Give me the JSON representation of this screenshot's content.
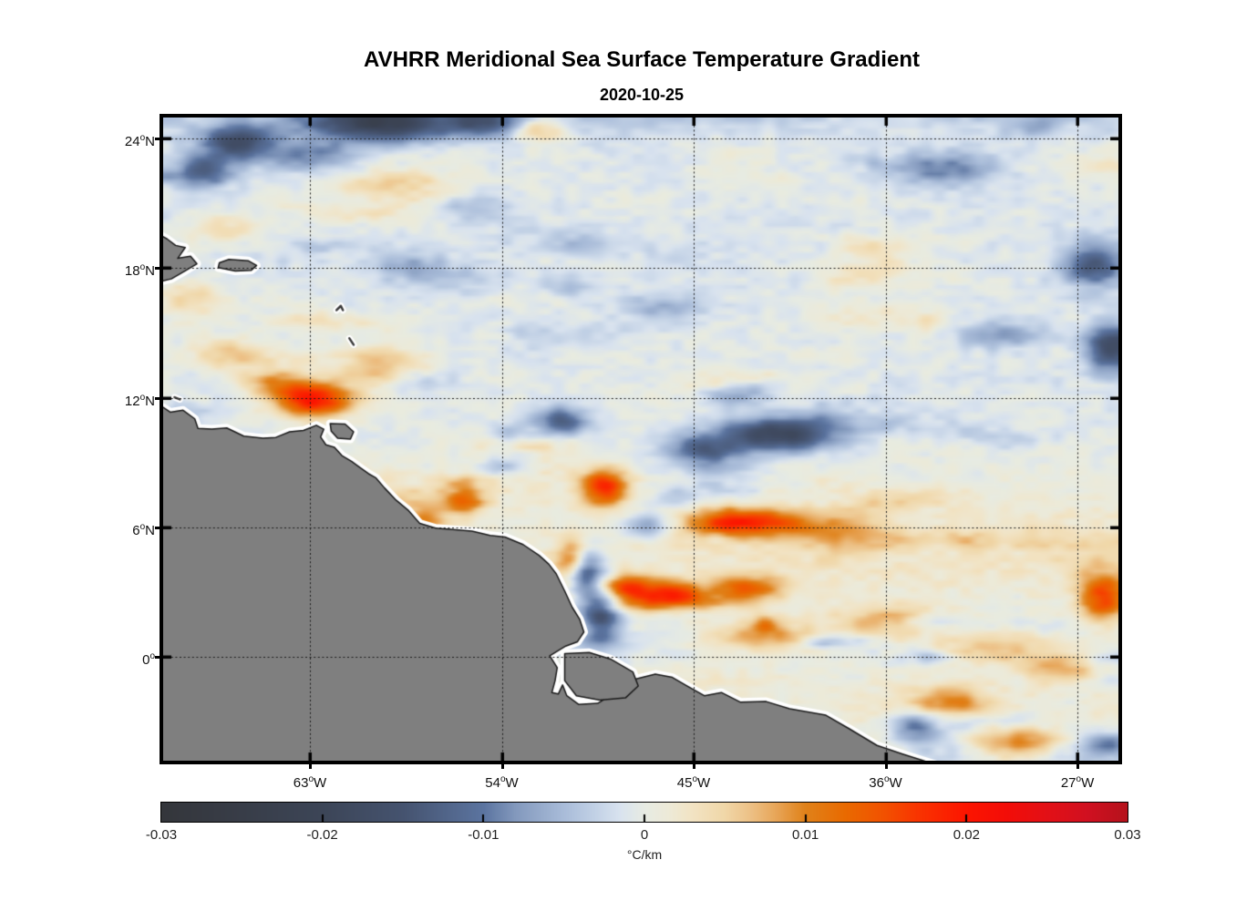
{
  "title": "AVHRR Meridional Sea Surface Temperature Gradient",
  "subtitle": "2020-10-25",
  "chart_data": {
    "type": "heatmap",
    "title": "AVHRR Meridional Sea Surface Temperature Gradient",
    "subtitle": "2020-10-25",
    "x_axis": {
      "unit": "degrees west longitude",
      "ticks": [
        {
          "deg": 63,
          "label": "63",
          "hemi": "W"
        },
        {
          "deg": 54,
          "label": "54",
          "hemi": "W"
        },
        {
          "deg": 45,
          "label": "45",
          "hemi": "W"
        },
        {
          "deg": 36,
          "label": "36",
          "hemi": "W"
        },
        {
          "deg": 27,
          "label": "27",
          "hemi": "W"
        }
      ],
      "lim": [
        -70,
        -25
      ]
    },
    "y_axis": {
      "unit": "degrees north latitude",
      "ticks": [
        {
          "deg": 24,
          "label": "24",
          "hemi": "N"
        },
        {
          "deg": 18,
          "label": "18",
          "hemi": "N"
        },
        {
          "deg": 12,
          "label": "12",
          "hemi": "N"
        },
        {
          "deg": 6,
          "label": "6",
          "hemi": "N"
        },
        {
          "deg": 0,
          "label": "0",
          "hemi": ""
        }
      ],
      "lim": [
        -5,
        25
      ]
    },
    "grid": "dotted",
    "land_color": "#7f7f7f",
    "coast_halo_color": "#ffffff",
    "coast_line_color": "#1a1a1a",
    "colorbar": {
      "min": -0.03,
      "max": 0.03,
      "unit": "°C/km",
      "tick_labels": [
        {
          "t": "-0.03",
          "v": -0.03
        },
        {
          "t": "-0.02",
          "v": -0.02
        },
        {
          "t": "-0.01",
          "v": -0.01
        },
        {
          "t": "0",
          "v": 0
        },
        {
          "t": "0.01",
          "v": 0.01
        },
        {
          "t": "0.02",
          "v": 0.02
        },
        {
          "t": "0.03",
          "v": 0.03
        }
      ],
      "stops": [
        {
          "v": -0.03,
          "c": "#34363b"
        },
        {
          "v": -0.025,
          "c": "#383d48"
        },
        {
          "v": -0.02,
          "c": "#3c4557"
        },
        {
          "v": -0.015,
          "c": "#45536f"
        },
        {
          "v": -0.01,
          "c": "#5b74a0"
        },
        {
          "v": -0.008,
          "c": "#8399bd"
        },
        {
          "v": -0.005,
          "c": "#a9bcd9"
        },
        {
          "v": -0.003,
          "c": "#c3d2e6"
        },
        {
          "v": -0.0015,
          "c": "#d9e3ef"
        },
        {
          "v": 0,
          "c": "#e7ebe3"
        },
        {
          "v": 0.0015,
          "c": "#edead8"
        },
        {
          "v": 0.003,
          "c": "#f2e3c3"
        },
        {
          "v": 0.005,
          "c": "#f0d7a8"
        },
        {
          "v": 0.0065,
          "c": "#edc288"
        },
        {
          "v": 0.008,
          "c": "#e8a95e"
        },
        {
          "v": 0.01,
          "c": "#e0821a"
        },
        {
          "v": 0.0125,
          "c": "#e96a00"
        },
        {
          "v": 0.015,
          "c": "#f25000"
        },
        {
          "v": 0.017,
          "c": "#f93400"
        },
        {
          "v": 0.02,
          "c": "#fc1500"
        },
        {
          "v": 0.0225,
          "c": "#f30d08"
        },
        {
          "v": 0.025,
          "c": "#e31016"
        },
        {
          "v": 0.0275,
          "c": "#d11020"
        },
        {
          "v": 0.03,
          "c": "#b5121c"
        }
      ]
    },
    "anomalies": [
      {
        "lon": -59.6,
        "lat": 24.7,
        "amp": -0.018,
        "sx": 2.3,
        "sy": 0.6
      },
      {
        "lon": -66.4,
        "lat": 23.8,
        "amp": -0.015,
        "sx": 1.2,
        "sy": 0.55
      },
      {
        "lon": -67.9,
        "lat": 22.4,
        "amp": -0.01,
        "sx": 0.9,
        "sy": 0.5
      },
      {
        "lon": -63.0,
        "lat": 23.2,
        "amp": -0.008,
        "sx": 1.5,
        "sy": 0.5
      },
      {
        "lon": -55.0,
        "lat": 24.8,
        "amp": -0.011,
        "sx": 1.2,
        "sy": 0.5
      },
      {
        "lon": -33.2,
        "lat": 22.6,
        "amp": -0.009,
        "sx": 1.7,
        "sy": 0.55
      },
      {
        "lon": -26.2,
        "lat": 18.1,
        "amp": -0.013,
        "sx": 1.0,
        "sy": 0.65
      },
      {
        "lon": -25.4,
        "lat": 14.3,
        "amp": -0.017,
        "sx": 0.8,
        "sy": 0.75
      },
      {
        "lon": -30.6,
        "lat": 14.9,
        "amp": -0.007,
        "sx": 1.3,
        "sy": 0.45
      },
      {
        "lon": -41.0,
        "lat": 10.3,
        "amp": -0.018,
        "sx": 1.9,
        "sy": 0.55
      },
      {
        "lon": -44.6,
        "lat": 9.6,
        "amp": -0.011,
        "sx": 1.3,
        "sy": 0.5
      },
      {
        "lon": -51.2,
        "lat": 10.9,
        "amp": -0.012,
        "sx": 0.9,
        "sy": 0.5
      },
      {
        "lon": -50.1,
        "lat": 3.9,
        "amp": -0.015,
        "sx": 0.55,
        "sy": 0.9
      },
      {
        "lon": -49.3,
        "lat": 2.2,
        "amp": -0.016,
        "sx": 0.65,
        "sy": 1.0
      },
      {
        "lon": -47.2,
        "lat": 6.1,
        "amp": -0.008,
        "sx": 0.8,
        "sy": 0.45
      },
      {
        "lon": -34.6,
        "lat": -3.2,
        "amp": -0.01,
        "sx": 0.8,
        "sy": 0.45
      },
      {
        "lon": -53.9,
        "lat": 8.8,
        "amp": -0.006,
        "sx": 0.8,
        "sy": 0.4
      },
      {
        "lon": -43.0,
        "lat": 12.2,
        "amp": -0.006,
        "sx": 1.2,
        "sy": 0.4
      },
      {
        "lon": -56.5,
        "lat": 17.4,
        "amp": -0.005,
        "sx": 1.8,
        "sy": 0.45
      },
      {
        "lon": -51.5,
        "lat": 19.2,
        "amp": -0.005,
        "sx": 1.6,
        "sy": 0.45
      },
      {
        "lon": -46.5,
        "lat": 16.2,
        "amp": -0.005,
        "sx": 1.4,
        "sy": 0.45
      },
      {
        "lon": -55.4,
        "lat": 20.7,
        "amp": -0.005,
        "sx": 1.2,
        "sy": 0.4
      },
      {
        "lon": -58.5,
        "lat": 18.2,
        "amp": -0.005,
        "sx": 1.3,
        "sy": 0.4
      },
      {
        "lon": -51.0,
        "lat": 17.2,
        "amp": -0.004,
        "sx": 0.8,
        "sy": 0.35
      },
      {
        "lon": -57.8,
        "lat": 12.7,
        "amp": -0.0045,
        "sx": 1.1,
        "sy": 0.35
      },
      {
        "lon": -53.7,
        "lat": 10.2,
        "amp": -0.005,
        "sx": 0.7,
        "sy": 0.4
      },
      {
        "lon": -62.8,
        "lat": 11.9,
        "amp": 0.02,
        "sx": 1.25,
        "sy": 0.55
      },
      {
        "lon": -64.6,
        "lat": 12.7,
        "amp": 0.009,
        "sx": 1.1,
        "sy": 0.45
      },
      {
        "lon": -49.2,
        "lat": 7.85,
        "amp": 0.018,
        "sx": 0.8,
        "sy": 0.6
      },
      {
        "lon": -50.6,
        "lat": 4.6,
        "amp": 0.012,
        "sx": 0.55,
        "sy": 0.65
      },
      {
        "lon": -48.3,
        "lat": 3.2,
        "amp": 0.012,
        "sx": 1.0,
        "sy": 0.45
      },
      {
        "lon": -46.0,
        "lat": 2.8,
        "amp": 0.011,
        "sx": 1.1,
        "sy": 0.4
      },
      {
        "lon": -42.5,
        "lat": 3.2,
        "amp": 0.009,
        "sx": 1.2,
        "sy": 0.4
      },
      {
        "lon": -43.3,
        "lat": 6.2,
        "amp": 0.016,
        "sx": 1.4,
        "sy": 0.5
      },
      {
        "lon": -40.8,
        "lat": 6.2,
        "amp": 0.009,
        "sx": 1.2,
        "sy": 0.45
      },
      {
        "lon": -37.8,
        "lat": 5.6,
        "amp": 0.006,
        "sx": 1.5,
        "sy": 0.5
      },
      {
        "lon": -41.8,
        "lat": 1.0,
        "amp": 0.009,
        "sx": 1.6,
        "sy": 0.45
      },
      {
        "lon": -41.7,
        "lat": 1.6,
        "amp": 0.007,
        "sx": 0.4,
        "sy": 0.3
      },
      {
        "lon": -36.0,
        "lat": 1.6,
        "amp": 0.008,
        "sx": 1.7,
        "sy": 0.5
      },
      {
        "lon": -30.8,
        "lat": 0.4,
        "amp": 0.007,
        "sx": 1.9,
        "sy": 0.5
      },
      {
        "lon": -25.8,
        "lat": 2.7,
        "amp": 0.016,
        "sx": 0.8,
        "sy": 0.7
      },
      {
        "lon": -27.6,
        "lat": -0.6,
        "amp": 0.008,
        "sx": 1.4,
        "sy": 0.5
      },
      {
        "lon": -33.0,
        "lat": -2.1,
        "amp": 0.009,
        "sx": 1.3,
        "sy": 0.5
      },
      {
        "lon": -29.8,
        "lat": -3.9,
        "amp": 0.009,
        "sx": 1.6,
        "sy": 0.5
      },
      {
        "lon": -66.6,
        "lat": 14.0,
        "amp": 0.007,
        "sx": 1.3,
        "sy": 0.5
      },
      {
        "lon": -68.6,
        "lat": 16.6,
        "amp": 0.006,
        "sx": 1.0,
        "sy": 0.55
      },
      {
        "lon": -58.8,
        "lat": 21.6,
        "amp": 0.005,
        "sx": 1.7,
        "sy": 0.6
      },
      {
        "lon": -52.2,
        "lat": 24.4,
        "amp": 0.008,
        "sx": 0.8,
        "sy": 0.45
      },
      {
        "lon": -55.7,
        "lat": 7.2,
        "amp": 0.011,
        "sx": 0.65,
        "sy": 0.45
      },
      {
        "lon": -57.6,
        "lat": 6.3,
        "amp": 0.01,
        "sx": 0.7,
        "sy": 0.5
      },
      {
        "lon": -59.5,
        "lat": 13.6,
        "amp": 0.006,
        "sx": 1.4,
        "sy": 0.55
      },
      {
        "lon": -67.0,
        "lat": 19.8,
        "amp": 0.005,
        "sx": 1.2,
        "sy": 0.5
      }
    ],
    "coastline": {
      "mainland": [
        [
          -70.6,
          11.6
        ],
        [
          -69.9,
          11.56
        ],
        [
          -69.55,
          11.33
        ],
        [
          -68.95,
          11.42
        ],
        [
          -68.4,
          11.02
        ],
        [
          -68.25,
          10.58
        ],
        [
          -67.6,
          10.55
        ],
        [
          -66.9,
          10.6
        ],
        [
          -66.1,
          10.22
        ],
        [
          -65.2,
          10.12
        ],
        [
          -64.6,
          10.16
        ],
        [
          -63.95,
          10.42
        ],
        [
          -63.3,
          10.48
        ],
        [
          -62.7,
          10.72
        ],
        [
          -62.35,
          10.54
        ],
        [
          -62.5,
          10.18
        ],
        [
          -62.25,
          9.82
        ],
        [
          -61.85,
          9.7
        ],
        [
          -61.5,
          9.32
        ],
        [
          -61.05,
          9.05
        ],
        [
          -60.7,
          8.8
        ],
        [
          -60.25,
          8.48
        ],
        [
          -59.9,
          8.28
        ],
        [
          -59.5,
          7.82
        ],
        [
          -58.95,
          7.25
        ],
        [
          -58.4,
          6.8
        ],
        [
          -57.85,
          6.18
        ],
        [
          -57.1,
          5.96
        ],
        [
          -56.3,
          5.9
        ],
        [
          -55.4,
          5.82
        ],
        [
          -54.55,
          5.62
        ],
        [
          -53.85,
          5.55
        ],
        [
          -53.0,
          5.2
        ],
        [
          -52.25,
          4.7
        ],
        [
          -51.8,
          4.3
        ],
        [
          -51.45,
          3.85
        ],
        [
          -51.05,
          3.05
        ],
        [
          -50.7,
          2.3
        ],
        [
          -50.35,
          1.75
        ],
        [
          -50.15,
          1.15
        ],
        [
          -50.45,
          0.7
        ],
        [
          -51.0,
          0.5
        ],
        [
          -51.75,
          0.05
        ],
        [
          -51.4,
          -0.5
        ],
        [
          -51.5,
          -1.1
        ],
        [
          -51.65,
          -1.65
        ],
        [
          -51.35,
          -1.72
        ],
        [
          -51.15,
          -1.3
        ],
        [
          -50.95,
          -1.8
        ],
        [
          -50.4,
          -2.2
        ],
        [
          -49.5,
          -2.15
        ],
        [
          -48.6,
          -1.6
        ],
        [
          -48.2,
          -1.15
        ],
        [
          -47.4,
          -0.95
        ],
        [
          -46.8,
          -0.8
        ],
        [
          -46.0,
          -0.95
        ],
        [
          -45.3,
          -1.35
        ],
        [
          -44.5,
          -1.8
        ],
        [
          -43.7,
          -1.65
        ],
        [
          -42.8,
          -2.1
        ],
        [
          -41.6,
          -2.07
        ],
        [
          -40.5,
          -2.4
        ],
        [
          -38.8,
          -2.7
        ],
        [
          -37.7,
          -3.33
        ],
        [
          -36.4,
          -4.1
        ],
        [
          -35.2,
          -4.5
        ],
        [
          -33.6,
          -5.0
        ],
        [
          -33.0,
          -5.8
        ],
        [
          -70.6,
          -5.8
        ]
      ],
      "marajo_island": [
        [
          -51.05,
          0.15
        ],
        [
          -49.9,
          0.2
        ],
        [
          -48.9,
          -0.1
        ],
        [
          -47.85,
          -0.7
        ],
        [
          -47.6,
          -1.35
        ],
        [
          -48.2,
          -1.9
        ],
        [
          -49.4,
          -2.0
        ],
        [
          -50.5,
          -1.8
        ],
        [
          -51.05,
          -1.1
        ]
      ],
      "trinidad": [
        [
          -62.05,
          10.8
        ],
        [
          -61.35,
          10.78
        ],
        [
          -60.95,
          10.42
        ],
        [
          -61.1,
          10.08
        ],
        [
          -61.7,
          10.12
        ],
        [
          -62.0,
          10.45
        ]
      ],
      "hispaniola": [
        [
          -70.6,
          17.25
        ],
        [
          -69.5,
          17.5
        ],
        [
          -68.8,
          17.9
        ],
        [
          -68.3,
          18.2
        ],
        [
          -68.6,
          18.55
        ],
        [
          -69.2,
          18.45
        ],
        [
          -68.85,
          18.95
        ],
        [
          -69.3,
          19.05
        ],
        [
          -69.7,
          19.35
        ],
        [
          -70.6,
          19.85
        ]
      ],
      "puerto_rico": [
        [
          -67.3,
          18.02
        ],
        [
          -66.5,
          17.86
        ],
        [
          -65.75,
          17.9
        ],
        [
          -65.5,
          18.12
        ],
        [
          -65.9,
          18.34
        ],
        [
          -66.8,
          18.4
        ],
        [
          -67.25,
          18.24
        ]
      ],
      "small_islands": [
        {
          "name": "aruba-curacao",
          "pts": [
            [
              -69.35,
              12.02
            ],
            [
              -69.1,
              11.92
            ]
          ]
        },
        {
          "name": "guadeloupe",
          "pts": [
            [
              -61.75,
              16.05
            ],
            [
              -61.55,
              16.25
            ],
            [
              -61.45,
              16.05
            ]
          ]
        },
        {
          "name": "martinique",
          "pts": [
            [
              -61.15,
              14.75
            ],
            [
              -60.95,
              14.45
            ]
          ]
        }
      ]
    }
  }
}
